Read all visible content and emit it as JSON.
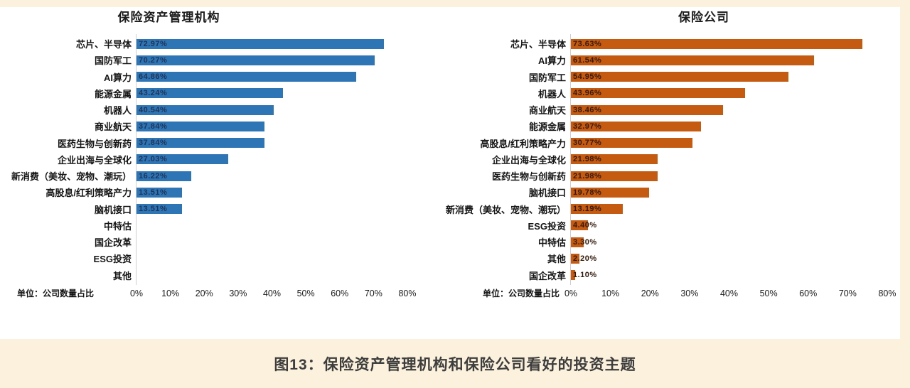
{
  "page": {
    "caption": "图13：保险资产管理机构和保险公司看好的投资主题",
    "colors": {
      "background_cream": "#fbf1dd",
      "panel_white": "#ffffff"
    }
  },
  "chart_data": [
    {
      "type": "bar",
      "orientation": "horizontal",
      "title": "保险资产管理机构",
      "unit_note": "单位：公司数量占比",
      "bar_color": "#2e75b6",
      "value_label_color": "#1f3456",
      "xlim": [
        0,
        80
      ],
      "grid": false,
      "legend": "none",
      "x_ticks": [
        "0%",
        "10%",
        "20%",
        "30%",
        "40%",
        "50%",
        "60%",
        "70%",
        "80%"
      ],
      "categories": [
        "芯片、半导体",
        "国防军工",
        "AI算力",
        "能源金属",
        "机器人",
        "商业航天",
        "医药生物与创新药",
        "企业出海与全球化",
        "新消费（美妆、宠物、潮玩）",
        "高股息/红利策略产力",
        "脑机接口",
        "中特估",
        "国企改革",
        "ESG投资",
        "其他"
      ],
      "values": [
        72.97,
        70.27,
        64.86,
        43.24,
        40.54,
        37.84,
        37.84,
        27.03,
        16.22,
        13.51,
        13.51,
        0,
        0,
        0,
        0
      ],
      "data_labels": [
        "72.97%",
        "70.27%",
        "64.86%",
        "43.24%",
        "40.54%",
        "37.84%",
        "37.84%",
        "27.03%",
        "16.22%",
        "13.51%",
        "13.51%",
        "",
        "",
        "",
        ""
      ]
    },
    {
      "type": "bar",
      "orientation": "horizontal",
      "title": "保险公司",
      "unit_note": "单位：公司数量占比",
      "bar_color": "#c55a11",
      "value_label_color": "#33190a",
      "xlim": [
        0,
        80
      ],
      "grid": false,
      "legend": "none",
      "x_ticks": [
        "0%",
        "10%",
        "20%",
        "30%",
        "40%",
        "50%",
        "60%",
        "70%",
        "80%"
      ],
      "categories": [
        "芯片、半导体",
        "AI算力",
        "国防军工",
        "机器人",
        "商业航天",
        "能源金属",
        "高股息/红利策略产力",
        "企业出海与全球化",
        "医药生物与创新药",
        "脑机接口",
        "新消费（美妆、宠物、潮玩）",
        "ESG投资",
        "中特估",
        "其他",
        "国企改革"
      ],
      "values": [
        73.63,
        61.54,
        54.95,
        43.96,
        38.46,
        32.97,
        30.77,
        21.98,
        21.98,
        19.78,
        13.19,
        4.4,
        3.3,
        2.2,
        1.1
      ],
      "data_labels": [
        "73.63%",
        "61.54%",
        "54.95%",
        "43.96%",
        "38.46%",
        "32.97%",
        "30.77%",
        "21.98%",
        "21.98%",
        "19.78%",
        "13.19%",
        "4.40%",
        "3.30%",
        "2.20%",
        "1.10%"
      ]
    }
  ]
}
